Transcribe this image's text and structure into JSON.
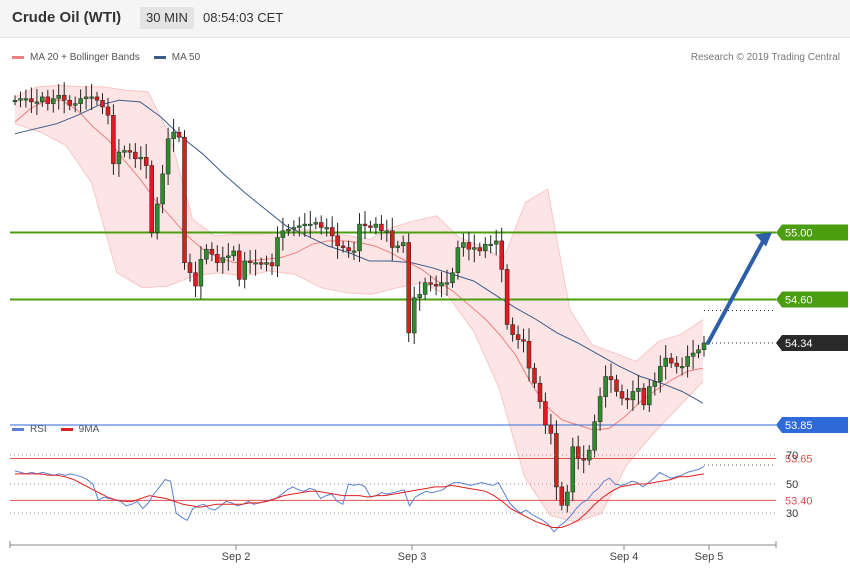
{
  "header": {
    "title": "Crude Oil (WTI)",
    "interval": "30 MIN",
    "time": "08:54:03 CET"
  },
  "price_legend": {
    "ma20_label": "MA 20 + Bollinger Bands",
    "ma50_label": "MA 50",
    "ma20_color": "#f08080",
    "ma50_color": "#3a5a8c",
    "credit": "Research © 2019 Trading Central"
  },
  "rsi_legend": {
    "rsi_label": "RSI",
    "ma9_label": "9MA",
    "rsi_color": "#5b7fd6",
    "ma9_color": "#e02020"
  },
  "x_axis": {
    "ticks": [
      "Sep 2",
      "Sep 3",
      "Sep 4",
      "Sep 5"
    ]
  },
  "levels": [
    {
      "label": "55.00",
      "value": 55.0,
      "kind": "resistance",
      "color": "#4a9e0f"
    },
    {
      "label": "54.60",
      "value": 54.6,
      "kind": "resistance",
      "color": "#4a9e0f"
    },
    {
      "label": "54.34",
      "value": 54.34,
      "kind": "last",
      "color": "#2a2a2a"
    },
    {
      "label": "53.85",
      "value": 53.85,
      "kind": "pivot",
      "color": "#2f6bd8"
    },
    {
      "label": "53.65",
      "value": 53.65,
      "kind": "support",
      "color": "#e05050"
    },
    {
      "label": "53.40",
      "value": 53.4,
      "kind": "support",
      "color": "#e05050"
    }
  ],
  "chart_data": [
    {
      "type": "candlestick",
      "title": "Crude Oil (WTI)",
      "interval": "30 MIN",
      "x_ticks": [
        "Sep 2",
        "Sep 3",
        "Sep 4",
        "Sep 5"
      ],
      "close": [
        55.79,
        55.8,
        55.8,
        55.78,
        55.78,
        55.81,
        55.77,
        55.8,
        55.82,
        55.79,
        55.76,
        55.77,
        55.8,
        55.81,
        55.81,
        55.79,
        55.75,
        55.7,
        55.41,
        55.48,
        55.49,
        55.48,
        55.44,
        55.45,
        55.4,
        55.0,
        55.17,
        55.35,
        55.56,
        55.6,
        55.57,
        54.82,
        54.76,
        54.68,
        54.84,
        54.9,
        54.87,
        54.82,
        54.85,
        54.86,
        54.89,
        54.72,
        54.83,
        54.82,
        54.82,
        54.81,
        54.82,
        54.8,
        54.97,
        55.01,
        55.02,
        55.03,
        55.04,
        55.05,
        55.05,
        55.06,
        55.03,
        55.03,
        54.98,
        54.92,
        54.91,
        54.89,
        54.89,
        55.05,
        55.04,
        55.03,
        55.05,
        55.01,
        55.01,
        54.91,
        54.92,
        54.94,
        54.4,
        54.61,
        54.63,
        54.7,
        54.69,
        54.68,
        54.7,
        54.7,
        54.76,
        54.91,
        54.94,
        54.9,
        54.91,
        54.89,
        54.93,
        54.93,
        54.95,
        54.78,
        54.45,
        54.39,
        54.36,
        54.35,
        54.19,
        54.1,
        53.99,
        53.85,
        53.8,
        53.48,
        53.37,
        53.45,
        53.72,
        53.65,
        53.64,
        53.7,
        53.87,
        54.02,
        54.14,
        54.12,
        54.05,
        54.01,
        54.0,
        54.05,
        54.07,
        53.97,
        54.08,
        54.11,
        54.2,
        54.25,
        54.22,
        54.2,
        54.2,
        54.26,
        54.28,
        54.3,
        54.34
      ],
      "series": [
        {
          "name": "MA 20",
          "values": [
            55.66,
            55.74,
            55.79,
            55.79,
            55.73,
            55.63,
            55.55,
            55.43,
            55.32,
            55.19,
            55.09,
            54.98,
            54.9,
            54.85,
            54.82,
            54.83,
            54.84,
            54.85,
            54.88,
            54.93,
            54.95,
            54.95,
            54.94,
            54.92,
            54.88,
            54.83,
            54.78,
            54.71,
            54.65,
            54.57,
            54.49,
            54.39,
            54.27,
            54.1,
            53.96,
            53.88,
            53.85,
            53.82,
            53.83,
            53.9,
            53.99,
            54.06,
            54.12,
            54.17,
            54.19
          ]
        },
        {
          "name": "MA 50",
          "values": [
            55.59,
            55.62,
            55.65,
            55.7,
            55.76,
            55.79,
            55.78,
            55.69,
            55.57,
            55.47,
            55.35,
            55.24,
            55.14,
            55.04,
            54.98,
            54.92,
            54.88,
            54.83,
            54.83,
            54.82,
            54.79,
            54.75,
            54.71,
            54.63,
            54.55,
            54.48,
            54.4,
            54.34,
            54.27,
            54.2,
            54.14,
            54.1,
            54.05,
            53.98
          ]
        },
        {
          "name": "Bollinger upper",
          "values": [
            55.81,
            55.87,
            55.88,
            55.87,
            55.87,
            55.85,
            55.84,
            55.57,
            55.08,
            54.98,
            54.99,
            54.99,
            55.0,
            55.02,
            55.0,
            54.98,
            54.96,
            55.03,
            55.07,
            55.1,
            54.97,
            54.92,
            54.84,
            55.18,
            55.26,
            54.54,
            54.33,
            54.28,
            54.23,
            54.35,
            54.39,
            54.48
          ]
        },
        {
          "name": "Bollinger lower",
          "values": [
            55.65,
            55.6,
            55.52,
            55.3,
            54.76,
            54.67,
            54.68,
            54.74,
            54.76,
            54.74,
            54.77,
            54.75,
            54.67,
            54.64,
            54.63,
            54.67,
            54.7,
            54.62,
            54.41,
            54.07,
            53.54,
            53.31,
            53.27,
            53.32,
            53.61,
            53.79,
            53.95,
            54.11
          ]
        }
      ],
      "levels": [
        55.0,
        54.6,
        54.34,
        53.85,
        53.65,
        53.4
      ],
      "forecast_arrow": {
        "from": 54.34,
        "to": 55.0
      }
    },
    {
      "type": "line",
      "title": "RSI",
      "y_ticks": [
        70,
        50,
        30
      ],
      "ylim": [
        15,
        78
      ],
      "series": [
        {
          "name": "RSI",
          "values": [
            59,
            58,
            57,
            58,
            57,
            58,
            57,
            56,
            57,
            56,
            57,
            56,
            55,
            53,
            50,
            39,
            41,
            40,
            39,
            38,
            35,
            36,
            38,
            33,
            37,
            43,
            48,
            53,
            52,
            30,
            27,
            25,
            33,
            35,
            36,
            33,
            32,
            35,
            38,
            37,
            35,
            36,
            38,
            36,
            37,
            38,
            39,
            40,
            43,
            46,
            48,
            46,
            45,
            47,
            46,
            40,
            42,
            43,
            38,
            36,
            50,
            49,
            50,
            48,
            41,
            42,
            44,
            43,
            44,
            45,
            46,
            35,
            41,
            43,
            45,
            44,
            45,
            46,
            49,
            51,
            51,
            50,
            49,
            50,
            51,
            50,
            49,
            51,
            44,
            37,
            33,
            30,
            32,
            29,
            27,
            25,
            22,
            17,
            21,
            24,
            28,
            33,
            37,
            39,
            44,
            47,
            52,
            54,
            50,
            49,
            50,
            52,
            51,
            48,
            51,
            54,
            58,
            56,
            54,
            55,
            56,
            58,
            59,
            60,
            62
          ]
        },
        {
          "name": "9MA",
          "values": [
            57,
            57,
            57,
            57,
            56,
            56,
            55,
            53,
            50,
            47,
            44,
            41,
            39,
            38,
            38,
            40,
            42,
            41,
            40,
            38,
            36,
            35,
            34,
            35,
            36,
            36,
            36,
            36,
            37,
            37,
            38,
            40,
            42,
            43,
            44,
            45,
            45,
            44,
            43,
            42,
            42,
            42,
            41,
            42,
            42,
            43,
            44,
            45,
            46,
            47,
            48,
            48,
            49,
            48,
            47,
            46,
            45,
            42,
            38,
            33,
            30,
            27,
            24,
            22,
            20,
            20,
            22,
            25,
            30,
            36,
            41,
            45,
            48,
            49,
            50,
            50,
            51,
            52,
            53,
            55,
            55,
            56,
            57
          ]
        }
      ]
    }
  ]
}
